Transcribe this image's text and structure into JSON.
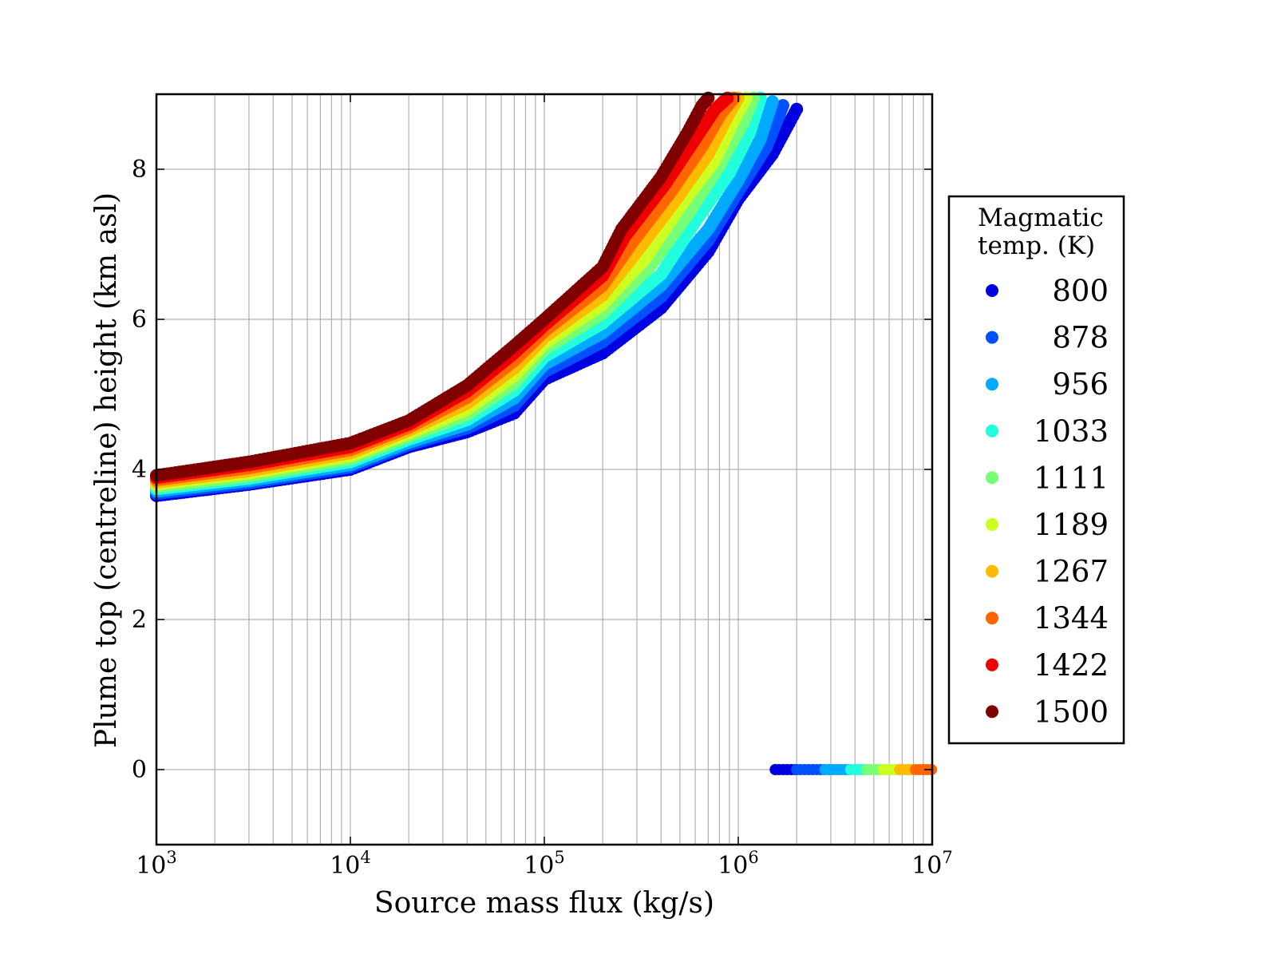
{
  "chart_data": {
    "type": "scatter",
    "title": "",
    "xlabel": "Source mass flux (kg/s)",
    "ylabel": "Plume top (centreline) height (km asl)",
    "xscale": "log",
    "xlim": [
      1000,
      10000000
    ],
    "ylim": [
      -1,
      9
    ],
    "grid": true,
    "x_ticks": [
      {
        "value": 1000,
        "base": "10",
        "exp": "3"
      },
      {
        "value": 10000,
        "base": "10",
        "exp": "4"
      },
      {
        "value": 100000,
        "base": "10",
        "exp": "5"
      },
      {
        "value": 1000000,
        "base": "10",
        "exp": "6"
      },
      {
        "value": 10000000,
        "base": "10",
        "exp": "7"
      }
    ],
    "y_ticks": [
      {
        "value": 0,
        "label": "0"
      },
      {
        "value": 2,
        "label": "2"
      },
      {
        "value": 4,
        "label": "4"
      },
      {
        "value": 6,
        "label": "6"
      },
      {
        "value": 8,
        "label": "8"
      }
    ],
    "legend": {
      "title_lines": [
        "Magmatic",
        "temp. (K)"
      ],
      "placement": "outside-right"
    },
    "series": [
      {
        "name": "800",
        "color": "#0000e0",
        "x": [
          1000,
          3000,
          10000,
          20000,
          40000,
          70000,
          100000,
          200000,
          400000,
          700000,
          1000000,
          1500000,
          2000000
        ],
        "y": [
          3.65,
          3.8,
          4.0,
          4.3,
          4.5,
          4.75,
          5.2,
          5.55,
          6.15,
          6.9,
          7.6,
          8.2,
          8.8
        ],
        "zero_x": [
          1550000,
          2000000
        ]
      },
      {
        "name": "878",
        "color": "#0050ff",
        "x": [
          1000,
          3000,
          10000,
          20000,
          40000,
          70000,
          100000,
          200000,
          400000,
          700000,
          1000000,
          1400000,
          1700000
        ],
        "y": [
          3.68,
          3.82,
          4.03,
          4.33,
          4.55,
          4.85,
          5.3,
          5.7,
          6.3,
          7.05,
          7.7,
          8.3,
          8.85
        ],
        "zero_x": [
          2000000,
          2800000
        ]
      },
      {
        "name": "956",
        "color": "#00aaff",
        "x": [
          1000,
          3000,
          10000,
          20000,
          40000,
          70000,
          100000,
          200000,
          400000,
          700000,
          1000000,
          1300000,
          1500000
        ],
        "y": [
          3.71,
          3.85,
          4.06,
          4.36,
          4.6,
          4.95,
          5.4,
          5.82,
          6.45,
          7.2,
          7.85,
          8.4,
          8.9
        ],
        "zero_x": [
          2800000,
          3800000
        ]
      },
      {
        "name": "1033",
        "color": "#22ffdd",
        "x": [
          1000,
          3000,
          10000,
          20000,
          40000,
          70000,
          100000,
          200000,
          400000,
          600000,
          900000,
          1150000,
          1300000
        ],
        "y": [
          3.74,
          3.88,
          4.1,
          4.4,
          4.66,
          5.05,
          5.5,
          5.95,
          6.6,
          7.3,
          7.95,
          8.5,
          8.95
        ],
        "zero_x": [
          3800000,
          4600000
        ]
      },
      {
        "name": "1111",
        "color": "#77ff77",
        "x": [
          1000,
          3000,
          10000,
          20000,
          40000,
          70000,
          100000,
          200000,
          350000,
          550000,
          800000,
          1050000,
          1200000
        ],
        "y": [
          3.77,
          3.91,
          4.14,
          4.44,
          4.73,
          5.15,
          5.6,
          6.08,
          6.7,
          7.4,
          8.05,
          8.6,
          8.95
        ],
        "zero_x": [
          4600000,
          5600000
        ]
      },
      {
        "name": "1189",
        "color": "#ccff22",
        "x": [
          1000,
          3000,
          10000,
          20000,
          40000,
          70000,
          100000,
          200000,
          330000,
          500000,
          750000,
          950000,
          1100000
        ],
        "y": [
          3.8,
          3.95,
          4.18,
          4.48,
          4.8,
          5.25,
          5.68,
          6.2,
          6.8,
          7.5,
          8.1,
          8.65,
          8.95
        ],
        "zero_x": [
          5600000,
          6800000
        ]
      },
      {
        "name": "1267",
        "color": "#ffbb00",
        "x": [
          1000,
          3000,
          10000,
          20000,
          40000,
          70000,
          100000,
          200000,
          300000,
          480000,
          700000,
          880000,
          1000000
        ],
        "y": [
          3.83,
          3.98,
          4.22,
          4.52,
          4.88,
          5.35,
          5.76,
          6.32,
          6.9,
          7.6,
          8.2,
          8.7,
          8.95
        ],
        "zero_x": [
          6800000,
          8200000
        ]
      },
      {
        "name": "1344",
        "color": "#ff6600",
        "x": [
          1000,
          3000,
          10000,
          20000,
          40000,
          70000,
          100000,
          200000,
          280000,
          450000,
          650000,
          820000,
          950000
        ],
        "y": [
          3.86,
          4.02,
          4.26,
          4.56,
          4.96,
          5.45,
          5.84,
          6.45,
          7.0,
          7.7,
          8.3,
          8.75,
          8.95
        ],
        "zero_x": [
          8200000,
          10000000
        ]
      },
      {
        "name": "1422",
        "color": "#ee0000",
        "x": [
          1000,
          3000,
          10000,
          20000,
          40000,
          70000,
          100000,
          200000,
          260000,
          420000,
          600000,
          760000,
          880000
        ],
        "y": [
          3.89,
          4.06,
          4.3,
          4.6,
          5.04,
          5.55,
          5.92,
          6.58,
          7.1,
          7.8,
          8.4,
          8.8,
          8.95
        ],
        "zero_x": []
      },
      {
        "name": "1500",
        "color": "#800000",
        "x": [
          1000,
          3000,
          10000,
          20000,
          40000,
          70000,
          100000,
          200000,
          250000,
          400000,
          550000,
          650000,
          700000
        ],
        "y": [
          3.92,
          4.1,
          4.35,
          4.65,
          5.12,
          5.65,
          6.0,
          6.7,
          7.2,
          7.9,
          8.5,
          8.85,
          8.95
        ],
        "zero_x": []
      }
    ]
  }
}
